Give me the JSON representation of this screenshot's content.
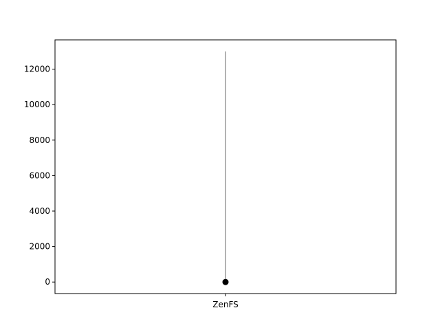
{
  "chart_data": {
    "type": "scatter",
    "categories": [
      "ZenFS"
    ],
    "series": [
      {
        "points": [
          {
            "category": "ZenFS",
            "value": 0,
            "range_low": 0,
            "range_high": 13000
          }
        ]
      }
    ],
    "ylim": [
      -650,
      13650
    ],
    "yticks": [
      0,
      2000,
      4000,
      6000,
      8000,
      10000,
      12000
    ],
    "ytick_labels": [
      "0",
      "2000",
      "4000",
      "6000",
      "8000",
      "10000",
      "12000"
    ],
    "xtick_labels": [
      "ZenFS"
    ],
    "title": "",
    "xlabel": "",
    "ylabel": "",
    "grid": false,
    "colors": {
      "marker": "#000000",
      "range_line": "#808080",
      "axes": "#000000"
    }
  }
}
